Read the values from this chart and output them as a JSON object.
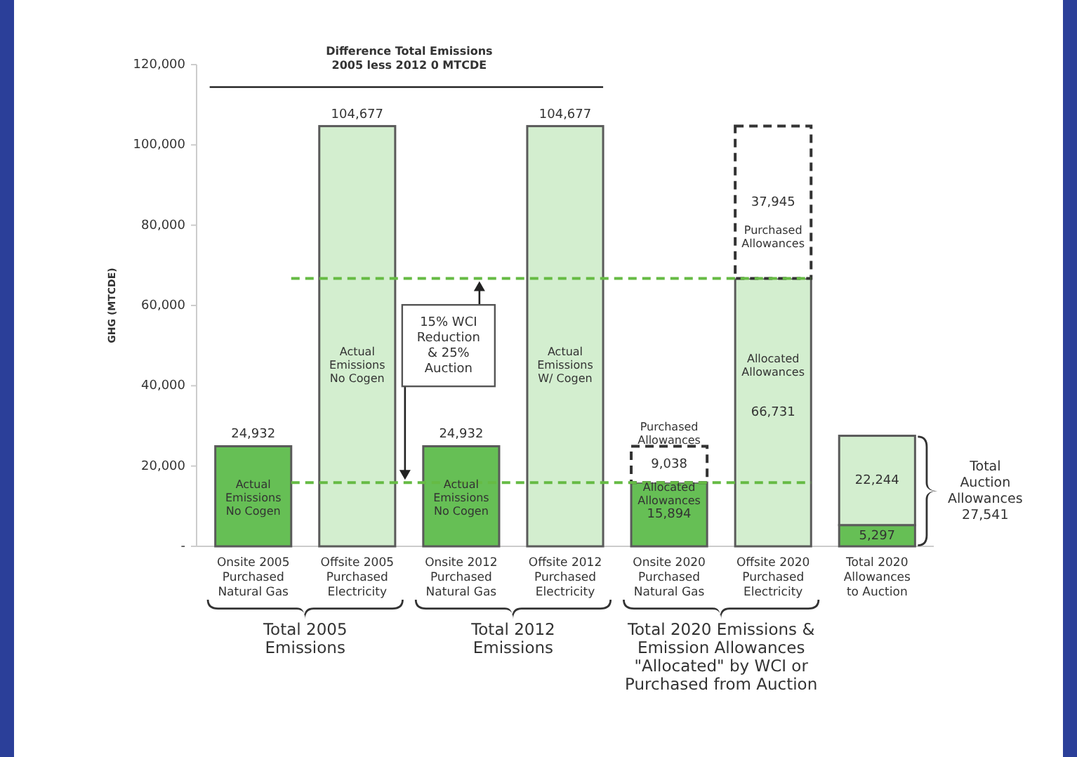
{
  "chart_data": {
    "type": "bar",
    "stacked": true,
    "title": "Difference Total Emissions 2005 less 2012 0 MTCDE",
    "ylabel": "GHG (MTCDE)",
    "categories": [
      "Onsite 2005 Purchased Natural Gas",
      "Offsite 2005 Purchased Electricity",
      "Onsite 2012 Purchased Natural Gas",
      "Offsite 2012 Purchased Electricity",
      "Onsite 2020 Purchased Natural Gas",
      "Offsite 2020 Purchased Electricity",
      "Total 2020 Allowances to Auction"
    ],
    "series": [
      {
        "color": "#66bf55",
        "values": [
          24932,
          null,
          24932,
          null,
          15894,
          null,
          5297
        ],
        "value_labels": [
          "24,932",
          null,
          "24,932",
          null,
          "15,894",
          null,
          "5,297"
        ]
      },
      {
        "color": "#d3eecf",
        "values": [
          null,
          104677,
          null,
          104677,
          null,
          66731,
          22244
        ],
        "value_labels": [
          null,
          "104,677",
          null,
          "104,677",
          null,
          "66,731",
          "22,244"
        ]
      },
      {
        "color": "#ffffff",
        "line_style": "dashed",
        "values": [
          null,
          null,
          null,
          null,
          9038,
          37945,
          null
        ],
        "value_labels": [
          null,
          null,
          null,
          null,
          "9,038",
          "37,945",
          null
        ]
      }
    ],
    "ylim": [
      0,
      120000
    ],
    "yticks": [
      {
        "value": 0,
        "label": "-"
      },
      {
        "value": 20000,
        "label": "20,000"
      },
      {
        "value": 40000,
        "label": "40,000"
      },
      {
        "value": 60000,
        "label": "60,000"
      },
      {
        "value": 80000,
        "label": "80,000"
      },
      {
        "value": 100000,
        "label": "100,000"
      },
      {
        "value": 120000,
        "label": "120,000"
      }
    ],
    "ref_lines": [
      {
        "axis": "y",
        "value": 15894,
        "color": "#66bb44",
        "line_style": "dashed"
      },
      {
        "axis": "y",
        "value": 66731,
        "color": "#66bb44",
        "line_style": "dashed"
      }
    ],
    "annotations": [
      "15% WCI Reduction & 25% Auction",
      "Total 2005 Emissions",
      "Total 2012 Emissions",
      "Total 2020 Emissions & Emission Allowances \"Allocated\" by WCI or Purchased from Auction",
      "Total Auction Allowances 27,541",
      "Actual Emissions No Cogen",
      "Actual Emissions No Cogen",
      "Actual Emissions No Cogen",
      "Actual Emissions W/ Cogen",
      "Purchased Allowances",
      "Allocated Allowances",
      "Allocated Allowances",
      "Purchased Allowances"
    ]
  }
}
